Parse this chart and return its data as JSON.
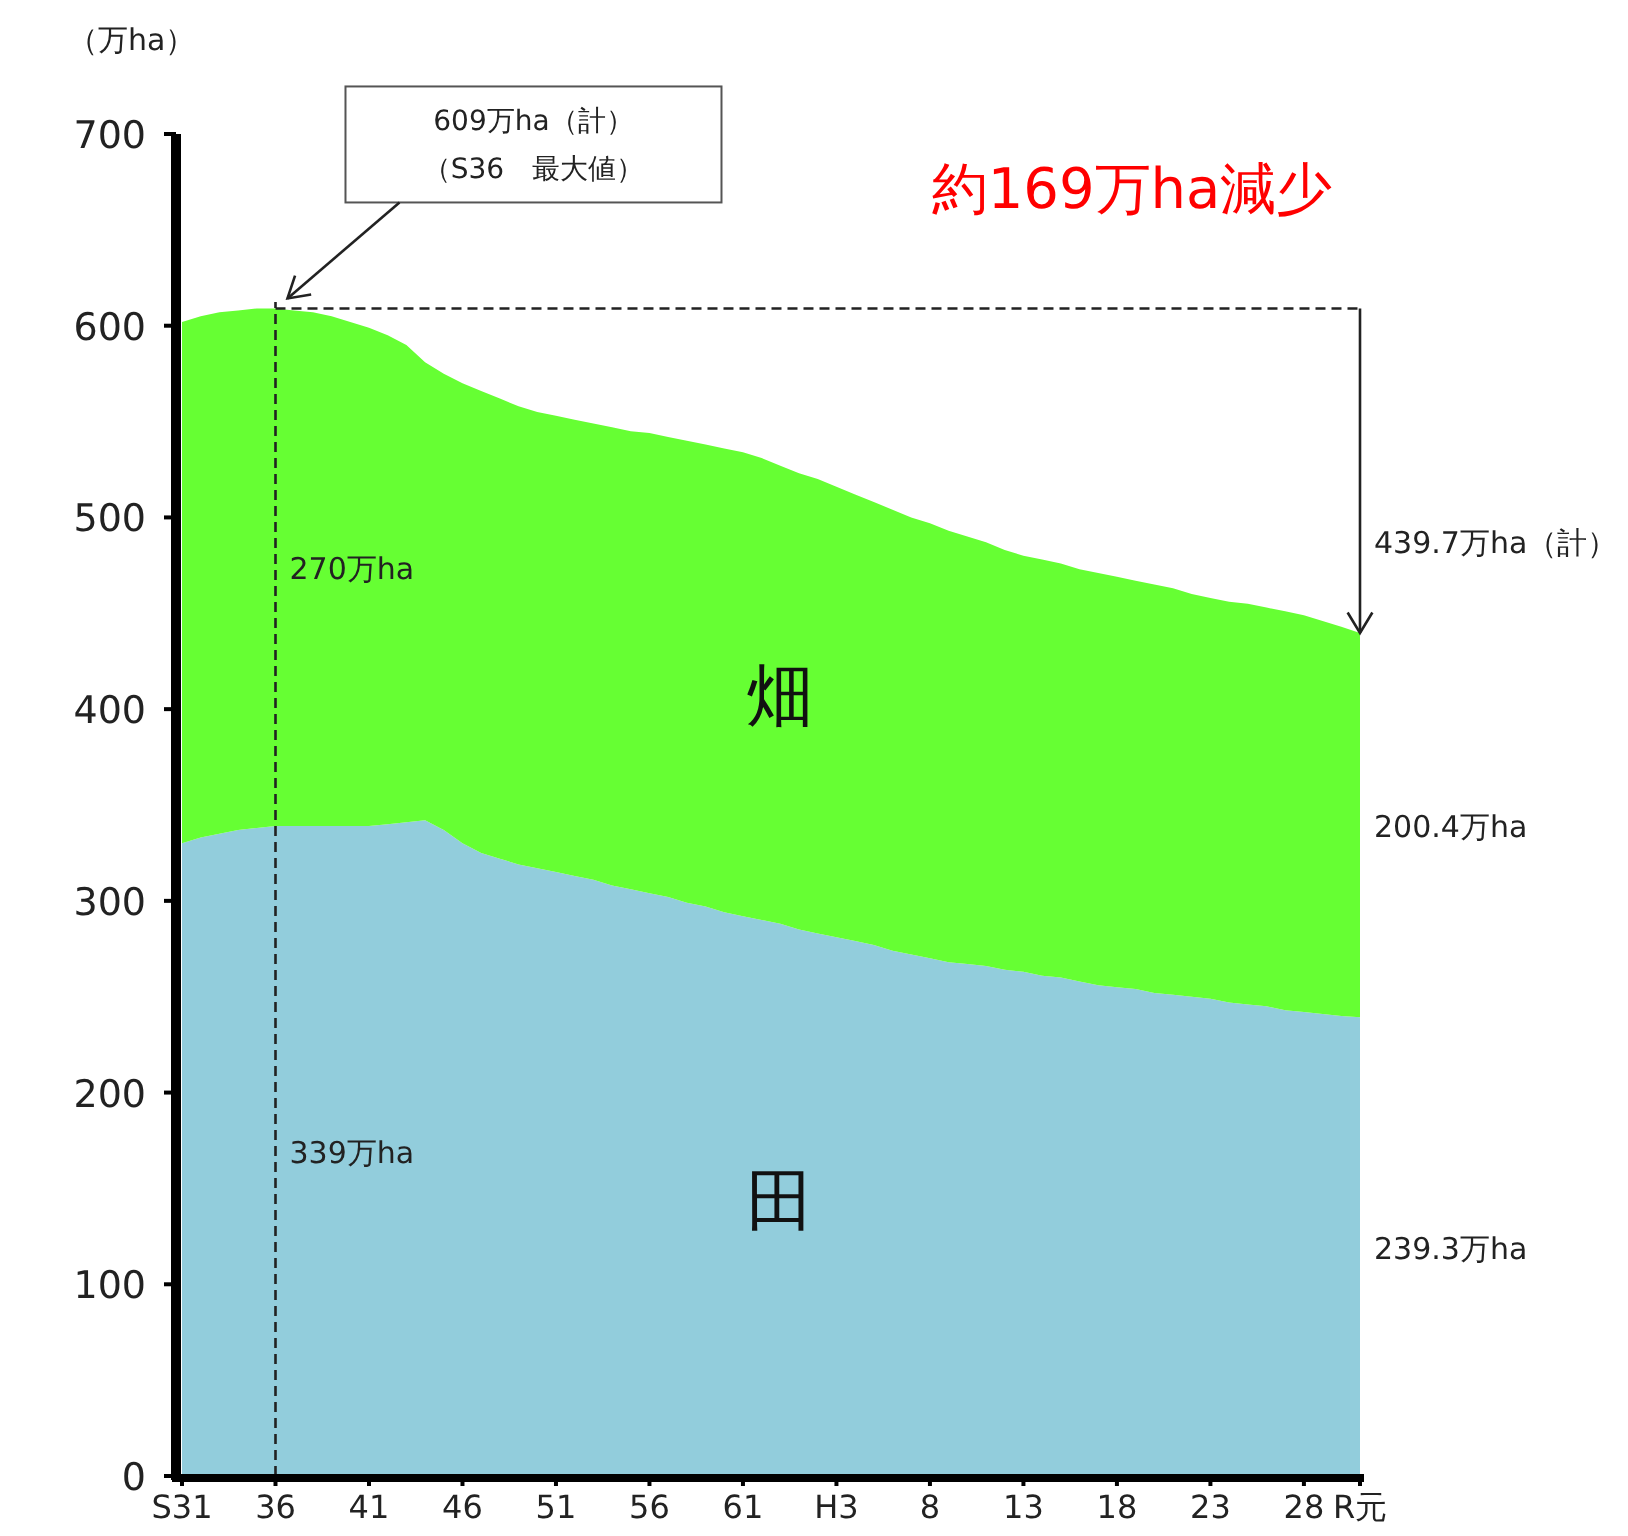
{
  "chart_data": {
    "type": "area",
    "stacked": true,
    "ylabel": "（万ha）",
    "categories": [
      "S31",
      null,
      null,
      null,
      null,
      "36",
      null,
      null,
      null,
      null,
      "41",
      null,
      null,
      null,
      null,
      "46",
      null,
      null,
      null,
      null,
      "51",
      null,
      null,
      null,
      null,
      "56",
      null,
      null,
      null,
      null,
      "61",
      null,
      null,
      null,
      null,
      "H3",
      null,
      null,
      null,
      null,
      "8",
      null,
      null,
      null,
      null,
      "13",
      null,
      null,
      null,
      null,
      "18",
      null,
      null,
      null,
      null,
      "23",
      null,
      null,
      null,
      null,
      "28",
      null,
      null,
      "R元"
    ],
    "ylim": [
      0,
      700
    ],
    "yticks": [
      0,
      100,
      200,
      300,
      400,
      500,
      600,
      700
    ],
    "series": [
      {
        "name": "田",
        "color": "#92cddc",
        "values": [
          330,
          333,
          335,
          337,
          338,
          339,
          339,
          339,
          339,
          339,
          339,
          340,
          341,
          342,
          337,
          330,
          325,
          322,
          319,
          317,
          315,
          313,
          311,
          308,
          306,
          304,
          302,
          299,
          297,
          294,
          292,
          290,
          288,
          285,
          283,
          281,
          279,
          277,
          274,
          272,
          270,
          268,
          267,
          266,
          264,
          263,
          261,
          260,
          258,
          256,
          255,
          254,
          252,
          251,
          250,
          249,
          247,
          246,
          245,
          243,
          242,
          241,
          240,
          239.3
        ]
      },
      {
        "name": "畑",
        "color": "#66ff33",
        "values": [
          272,
          272,
          272,
          271,
          271,
          270,
          269,
          268,
          266,
          263,
          260,
          255,
          249,
          239,
          238,
          240,
          241,
          240,
          239,
          238,
          238,
          238,
          238,
          239,
          239,
          240,
          240,
          241,
          241,
          242,
          242,
          241,
          239,
          238,
          237,
          235,
          233,
          231,
          230,
          228,
          227,
          225,
          223,
          221,
          219,
          217,
          217,
          216,
          215,
          215,
          214,
          213,
          213,
          212,
          210,
          209,
          209,
          209,
          208,
          208,
          207,
          205,
          203,
          200.4
        ]
      }
    ],
    "ref_lines": [
      {
        "axis": "x",
        "value": "36",
        "line_style": "dashed"
      },
      {
        "axis": "y",
        "value": 609,
        "line_style": "dashed"
      }
    ],
    "annotations": [
      "609万ha（計）",
      "（S36　最大値）",
      "約169万ha減少",
      {
        "text": "439.7万ha（計）",
        "x": "R元",
        "y": 439.7
      },
      {
        "text": "270万ha",
        "x": "36",
        "y": 474
      },
      {
        "text": "339万ha",
        "x": "36",
        "y": 169.5
      },
      {
        "text": "200.4万ha",
        "x": "R元",
        "y": 339.5
      },
      {
        "text": "239.3万ha",
        "x": "R元",
        "y": 119.65
      }
    ]
  }
}
